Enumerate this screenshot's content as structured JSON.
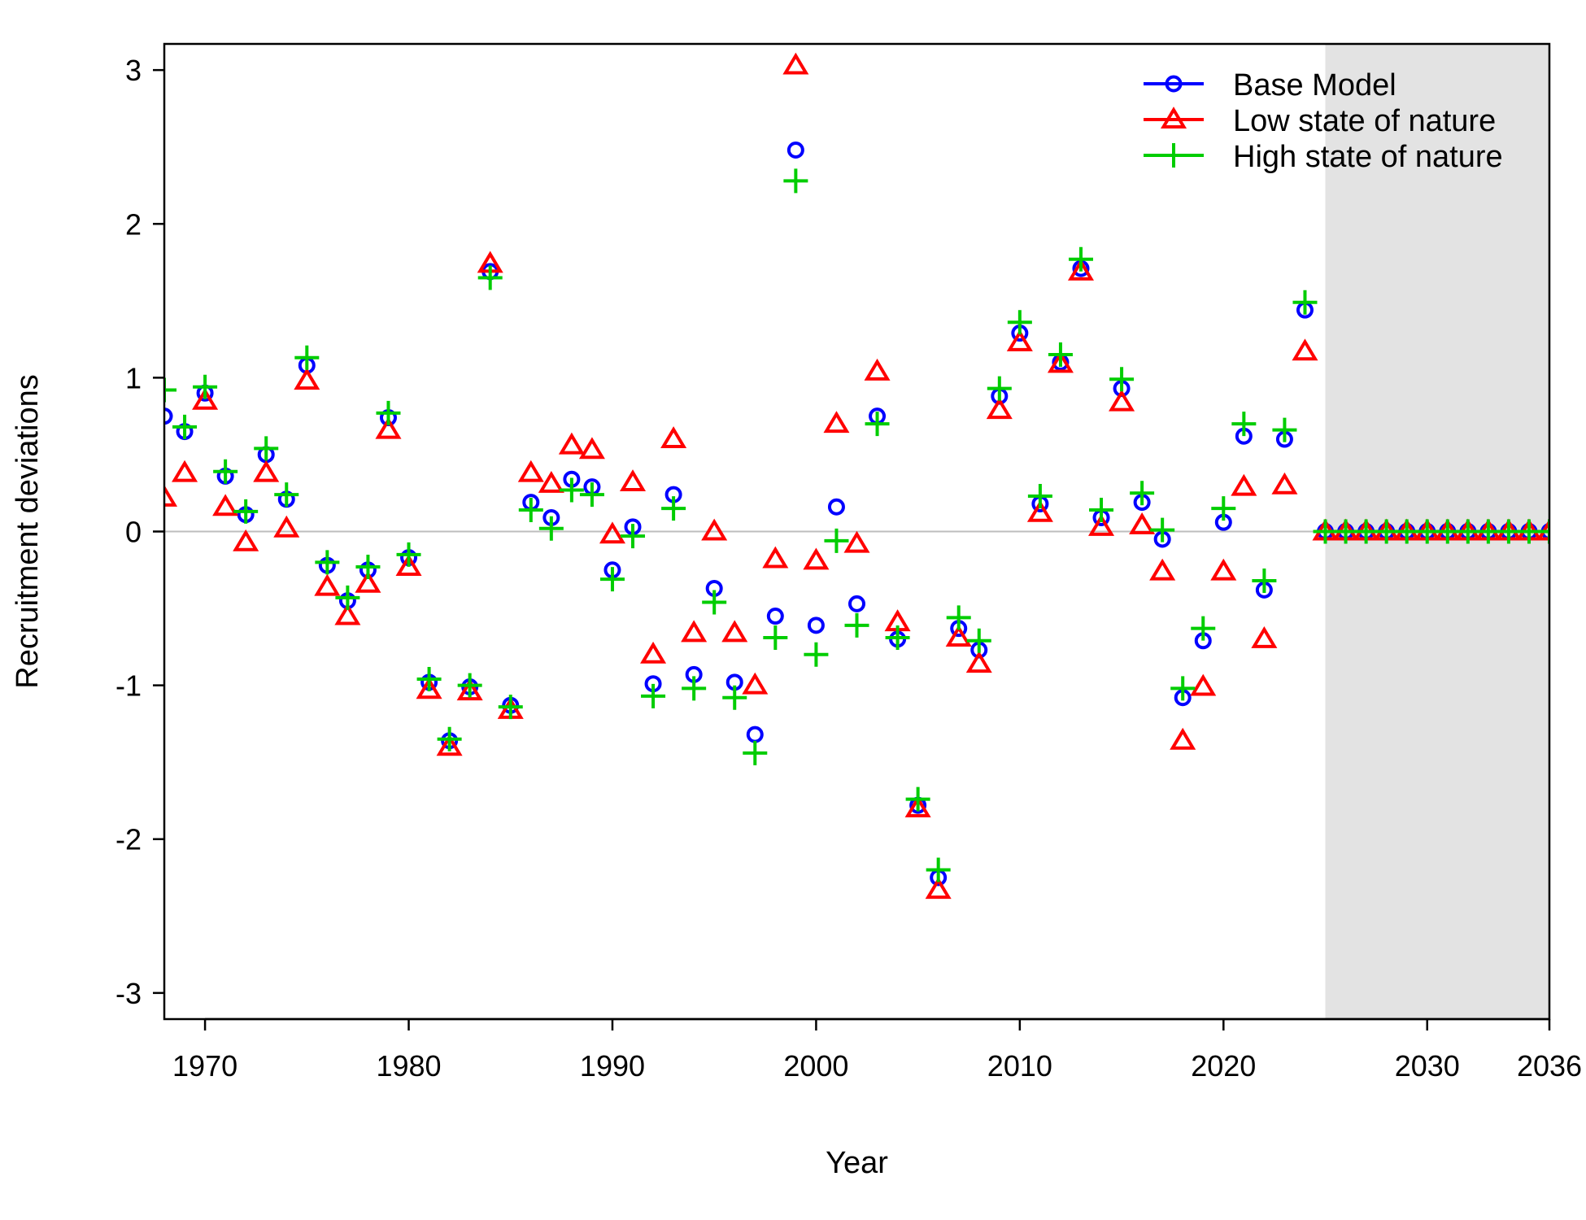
{
  "chart_data": {
    "type": "scatter",
    "title": "",
    "xlabel": "Year",
    "ylabel": "Recruitment deviations",
    "xlim": [
      1968,
      2036
    ],
    "ylim": [
      -3.17,
      3.17
    ],
    "x_ticks": [
      1970,
      1980,
      1990,
      2000,
      2010,
      2020,
      2030,
      2036
    ],
    "y_ticks": [
      -3,
      -2,
      -1,
      0,
      1,
      2,
      3
    ],
    "reference_line_y": 0,
    "reference_line_color": "#bebebe",
    "forecast_shade": {
      "x_start": 2025,
      "x_end": 2036,
      "color": "#e3e3e3"
    },
    "grid": false,
    "legend_position": "top-right",
    "years": [
      1968,
      1969,
      1970,
      1971,
      1972,
      1973,
      1974,
      1975,
      1976,
      1977,
      1978,
      1979,
      1980,
      1981,
      1982,
      1983,
      1984,
      1985,
      1986,
      1987,
      1988,
      1989,
      1990,
      1991,
      1992,
      1993,
      1994,
      1995,
      1996,
      1997,
      1998,
      1999,
      2000,
      2001,
      2002,
      2003,
      2004,
      2005,
      2006,
      2007,
      2008,
      2009,
      2010,
      2011,
      2012,
      2013,
      2014,
      2015,
      2016,
      2017,
      2018,
      2019,
      2020,
      2021,
      2022,
      2023,
      2024,
      2025,
      2026,
      2027,
      2028,
      2029,
      2030,
      2031,
      2032,
      2033,
      2034,
      2035,
      2036
    ],
    "series": [
      {
        "name": "Base Model",
        "marker": "circle",
        "color": "#0000ff",
        "values": [
          0.75,
          0.65,
          0.9,
          0.36,
          0.11,
          0.5,
          0.21,
          1.08,
          -0.22,
          -0.45,
          -0.25,
          0.74,
          -0.17,
          -0.98,
          -1.36,
          -1.01,
          1.69,
          -1.13,
          0.19,
          0.09,
          0.34,
          0.29,
          -0.25,
          0.03,
          -0.99,
          0.24,
          -0.93,
          -0.37,
          -0.98,
          -1.32,
          -0.55,
          2.48,
          -0.61,
          0.16,
          -0.47,
          0.75,
          -0.7,
          -1.78,
          -2.25,
          -0.63,
          -0.77,
          0.88,
          1.29,
          0.18,
          1.1,
          1.71,
          0.09,
          0.93,
          0.19,
          -0.05,
          -1.08,
          -0.71,
          0.06,
          0.62,
          -0.38,
          0.6,
          1.44,
          0,
          0,
          0,
          0,
          0,
          0,
          0,
          0,
          0,
          0,
          0,
          0
        ]
      },
      {
        "name": "Low state of nature",
        "marker": "triangle",
        "color": "#ff0000",
        "values": [
          0.22,
          0.38,
          0.85,
          0.16,
          -0.07,
          0.38,
          0.02,
          0.98,
          -0.36,
          -0.55,
          -0.34,
          0.66,
          -0.23,
          -1.03,
          -1.4,
          -1.04,
          1.74,
          -1.16,
          0.38,
          0.31,
          0.56,
          0.53,
          -0.02,
          0.32,
          -0.8,
          0.6,
          -0.66,
          0.0,
          -0.66,
          -1.0,
          -0.18,
          3.03,
          -0.19,
          0.7,
          -0.08,
          1.04,
          -0.59,
          -1.8,
          -2.33,
          -0.69,
          -0.86,
          0.79,
          1.23,
          0.12,
          1.09,
          1.69,
          0.03,
          0.84,
          0.04,
          -0.26,
          -1.36,
          -1.01,
          -0.26,
          0.29,
          -0.7,
          0.3,
          1.17,
          0,
          0,
          0,
          0,
          0,
          0,
          0,
          0,
          0,
          0,
          0,
          0
        ]
      },
      {
        "name": "High state of nature",
        "marker": "plus",
        "color": "#00cd00",
        "values": [
          0.92,
          0.68,
          0.94,
          0.39,
          0.13,
          0.54,
          0.24,
          1.13,
          -0.2,
          -0.43,
          -0.23,
          0.77,
          -0.15,
          -0.96,
          -1.35,
          -1.0,
          1.65,
          -1.14,
          0.14,
          0.02,
          0.27,
          0.24,
          -0.31,
          -0.03,
          -1.07,
          0.15,
          -1.02,
          -0.46,
          -1.08,
          -1.44,
          -0.69,
          2.28,
          -0.8,
          -0.06,
          -0.61,
          0.7,
          -0.69,
          -1.74,
          -2.2,
          -0.56,
          -0.71,
          0.93,
          1.36,
          0.23,
          1.15,
          1.77,
          0.14,
          0.99,
          0.25,
          0.01,
          -1.02,
          -0.63,
          0.15,
          0.7,
          -0.32,
          0.66,
          1.49,
          0,
          0,
          0,
          0,
          0,
          0,
          0,
          0,
          0,
          0,
          0,
          0
        ]
      }
    ]
  }
}
